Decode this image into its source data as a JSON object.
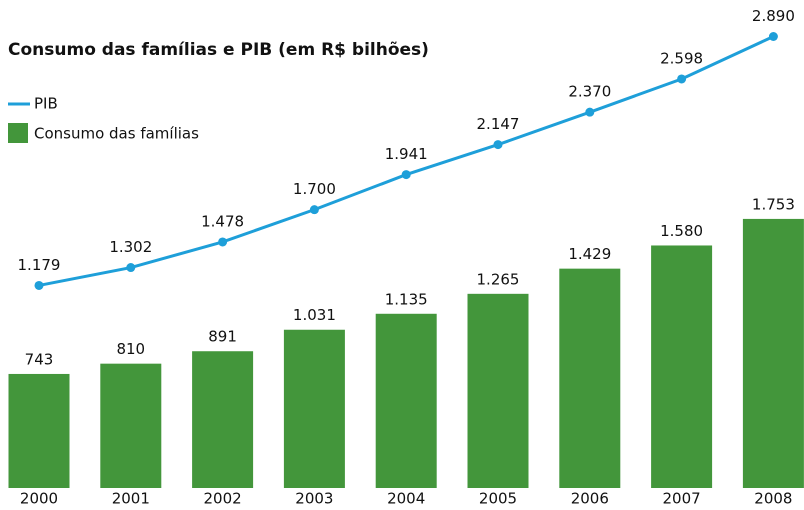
{
  "chart_data": {
    "type": "bar+line",
    "title": "Consumo das famílias e PIB (em R$ bilhões)",
    "categories": [
      "2000",
      "2001",
      "2002",
      "2003",
      "2004",
      "2005",
      "2006",
      "2007",
      "2008"
    ],
    "series": [
      {
        "name": "PIB",
        "type": "line",
        "color": "#1e9fd9",
        "values": [
          1179,
          1302,
          1478,
          1700,
          1941,
          2147,
          2370,
          2598,
          2890
        ],
        "value_labels": [
          "1.179",
          "1.302",
          "1.478",
          "1.700",
          "1.941",
          "2.147",
          "2.370",
          "2.598",
          "2.890"
        ]
      },
      {
        "name": "Consumo das famílias",
        "type": "bar",
        "color": "#43963b",
        "values": [
          743,
          810,
          891,
          1031,
          1135,
          1265,
          1429,
          1580,
          1753
        ],
        "value_labels": [
          "743",
          "810",
          "891",
          "1.031",
          "1.135",
          "1.265",
          "1.429",
          "1.580",
          "1.753"
        ]
      }
    ]
  }
}
